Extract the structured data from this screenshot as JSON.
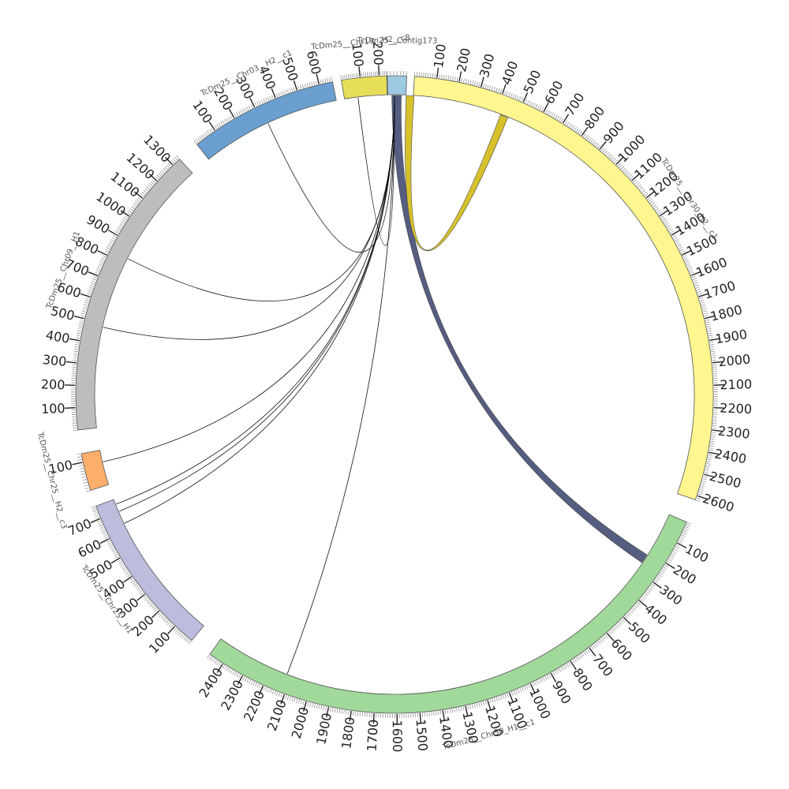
{
  "diagram": {
    "type": "circos",
    "palette": {
      "background": "#ffffff",
      "segment_stroke": "#555555",
      "label_color": "#555555",
      "tick_color": "#222222",
      "link_line_color": "#111111"
    },
    "segments": [
      {
        "id": "contig173",
        "name": "TcDm25__Contig173",
        "length": 60,
        "color": "#9ecae1",
        "ticks": [],
        "start_deg": -1.3,
        "end_deg": 2.2
      },
      {
        "id": "chr30_h2_c1",
        "name": "TcDm25__Chr30_H2__c1",
        "length": 2620,
        "color": "#fff68f",
        "ticks": [
          "100",
          "200",
          "300",
          "400",
          "500",
          "600",
          "700",
          "800",
          "900",
          "1000",
          "1100",
          "1200",
          "1300",
          "1400",
          "1500",
          "1600",
          "1700",
          "1800",
          "1900",
          "2000",
          "2100",
          "2200",
          "2300",
          "2400",
          "2500",
          "2600"
        ],
        "start_deg": 3.6,
        "end_deg": 109.3
      },
      {
        "id": "chr30_h1_c1",
        "name": "TcDm25__Chr30_H1__c1",
        "length": 2470,
        "color": "#a1d99b",
        "ticks": [
          "100",
          "200",
          "300",
          "400",
          "500",
          "600",
          "700",
          "800",
          "900",
          "1000",
          "1100",
          "1200",
          "1300",
          "1400",
          "1500",
          "1600",
          "1700",
          "1800",
          "1900",
          "2000",
          "2100",
          "2200",
          "2300",
          "2400"
        ],
        "start_deg": 113.6,
        "end_deg": 215.4
      },
      {
        "id": "chr25_h1",
        "name": "TcDm25__Chr25__H1",
        "length": 760,
        "color": "#bcbddc",
        "ticks": [
          "100",
          "200",
          "300",
          "400",
          "500",
          "600",
          "700"
        ],
        "start_deg": 219.5,
        "end_deg": 249.5
      },
      {
        "id": "chr25_h2_c3",
        "name": "TcDm25__Chr25__H2__c3",
        "length": 130,
        "color": "#fdae6b",
        "ticks": [
          "100"
        ],
        "start_deg": 252.5,
        "end_deg": 259.3
      },
      {
        "id": "chr09_h1",
        "name": "TcDm25__Chr09__H1",
        "length": 1340,
        "color": "#bdbdbd",
        "ticks": [
          "100",
          "200",
          "300",
          "400",
          "500",
          "600",
          "700",
          "800",
          "900",
          "1000",
          "1100",
          "1200",
          "1300"
        ],
        "start_deg": 263.6,
        "end_deg": 317.6
      },
      {
        "id": "chr03_h2_c1",
        "name": "TcDm25__Chr03__H2__c1",
        "length": 660,
        "color": "#6a9fd0",
        "ticks": [
          "100",
          "200",
          "300",
          "400",
          "500",
          "600"
        ],
        "start_deg": 321.7,
        "end_deg": 348.8
      },
      {
        "id": "chr19_h2_c8",
        "name": "TcDm25__Chr19__H2__c8",
        "length": 240,
        "color": "#e6de59",
        "ticks": [
          "100",
          "200"
        ],
        "start_deg": 350.4,
        "end_deg": 358.6
      }
    ],
    "links": [
      {
        "from_deg": 0.4,
        "to_deg": 123.3,
        "width_deg": 1.8,
        "color": "#555d80",
        "type": "ribbon"
      },
      {
        "from_deg": 3.0,
        "to_deg": 21.5,
        "width_deg": 1.5,
        "color": "#d6c12c",
        "type": "ribbon"
      },
      {
        "from_deg": 0.0,
        "to_deg": 353.0,
        "type": "line"
      },
      {
        "from_deg": 0.0,
        "to_deg": 335.0,
        "type": "line"
      },
      {
        "from_deg": 0.0,
        "to_deg": 297.0,
        "type": "line"
      },
      {
        "from_deg": 0.0,
        "to_deg": 283.0,
        "type": "line"
      },
      {
        "from_deg": 0.0,
        "to_deg": 257.0,
        "type": "line"
      },
      {
        "from_deg": 0.0,
        "to_deg": 248.5,
        "type": "line"
      },
      {
        "from_deg": 0.0,
        "to_deg": 247.0,
        "type": "line"
      },
      {
        "from_deg": 0.0,
        "to_deg": 244.5,
        "type": "line"
      },
      {
        "from_deg": 0.0,
        "to_deg": 201.0,
        "type": "line"
      }
    ]
  }
}
